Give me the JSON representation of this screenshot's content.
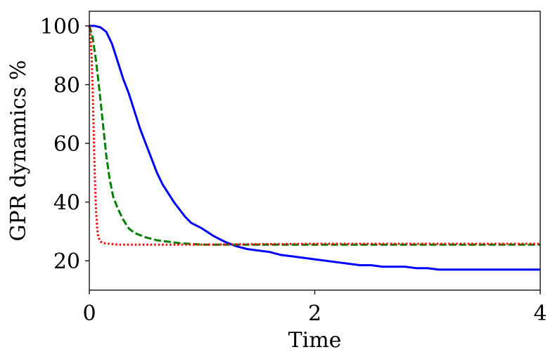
{
  "chart_data": {
    "type": "line",
    "xlabel": "Time",
    "ylabel": "GPR dynamics %",
    "xlim": [
      0,
      4
    ],
    "ylim": [
      10,
      105
    ],
    "xticks": [
      0,
      2,
      4
    ],
    "yticks": [
      20,
      40,
      60,
      80,
      100
    ],
    "grid": false,
    "series": [
      {
        "style": "solid",
        "color": "#0000ff",
        "x": [
          0,
          0.05,
          0.1,
          0.15,
          0.2,
          0.25,
          0.3,
          0.35,
          0.4,
          0.45,
          0.5,
          0.55,
          0.6,
          0.65,
          0.7,
          0.75,
          0.8,
          0.85,
          0.9,
          0.95,
          1.0,
          1.1,
          1.2,
          1.3,
          1.4,
          1.5,
          1.6,
          1.7,
          1.8,
          1.9,
          2.0,
          2.1,
          2.2,
          2.3,
          2.4,
          2.5,
          2.6,
          2.7,
          2.8,
          2.9,
          3.0,
          3.1,
          3.2,
          3.3,
          3.4,
          3.5,
          3.6,
          3.7,
          3.8,
          3.9,
          4.0
        ],
        "y": [
          100,
          100,
          99.5,
          98,
          94,
          88,
          82,
          77,
          71,
          65,
          60,
          55,
          50,
          46,
          43,
          40,
          37.5,
          35,
          33,
          32,
          31,
          28.5,
          26.5,
          25,
          24,
          23.5,
          23,
          22,
          21.5,
          21,
          20.5,
          20,
          19.5,
          19,
          18.5,
          18.5,
          18,
          18,
          18,
          17.5,
          17.5,
          17,
          17,
          17,
          17,
          17,
          17,
          17,
          17,
          17,
          17
        ]
      },
      {
        "style": "dashed",
        "color": "#008000",
        "x": [
          0,
          0.03,
          0.06,
          0.09,
          0.12,
          0.15,
          0.18,
          0.21,
          0.25,
          0.3,
          0.35,
          0.4,
          0.5,
          0.6,
          0.7,
          0.8,
          1.0,
          1.2,
          1.5,
          2.0,
          2.5,
          3.0,
          3.5,
          4.0
        ],
        "y": [
          100,
          96,
          88,
          78,
          67,
          56,
          48,
          42,
          38,
          34,
          31,
          29.5,
          28,
          27,
          26.5,
          26,
          25.5,
          25.5,
          25.5,
          25.5,
          25.5,
          25.5,
          25.5,
          25.5
        ]
      },
      {
        "style": "dotted",
        "color": "#ff0000",
        "x": [
          0,
          0.01,
          0.02,
          0.03,
          0.04,
          0.05,
          0.06,
          0.07,
          0.08,
          0.1,
          0.13,
          0.18,
          0.25,
          0.4,
          0.6,
          1.0,
          2.0,
          3.0,
          4.0
        ],
        "y": [
          100,
          97,
          90,
          78,
          62,
          47,
          37,
          31,
          28,
          26.5,
          26,
          25.8,
          25.5,
          25.5,
          25.5,
          25.5,
          25.8,
          25.8,
          25.8
        ]
      }
    ]
  }
}
